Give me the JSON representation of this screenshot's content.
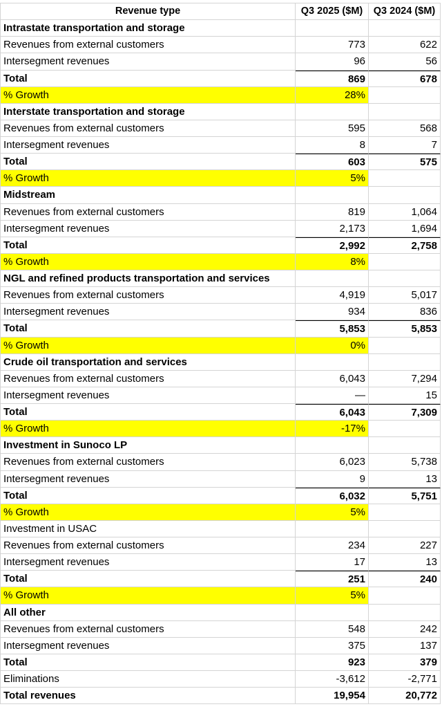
{
  "table": {
    "header": [
      "Revenue type",
      "Q3 2025 ($M)",
      "Q3 2024 ($M)"
    ],
    "rows": [
      [
        "Intrastate transportation and storage"
      ],
      [
        "Revenues from external customers",
        "773",
        "622"
      ],
      [
        "Intersegment revenues",
        "96",
        "56"
      ],
      [
        "Total",
        "869",
        "678"
      ],
      [
        "% Growth",
        "28%"
      ],
      [
        "Interstate transportation and storage"
      ],
      [
        "Revenues from external customers",
        "595",
        "568"
      ],
      [
        "Intersegment revenues",
        "8",
        "7"
      ],
      [
        "Total",
        "603",
        "575"
      ],
      [
        "% Growth",
        "5%"
      ],
      [
        "Midstream"
      ],
      [
        "Revenues from external customers",
        "819",
        "1,064"
      ],
      [
        "Intersegment revenues",
        "2,173",
        "1,694"
      ],
      [
        "Total",
        "2,992",
        "2,758"
      ],
      [
        "% Growth",
        "8%"
      ],
      [
        "NGL and refined products transportation and services"
      ],
      [
        "Revenues from external customers",
        "4,919",
        "5,017"
      ],
      [
        "Intersegment revenues",
        "934",
        "836"
      ],
      [
        "Total",
        "5,853",
        "5,853"
      ],
      [
        "% Growth",
        "0%"
      ],
      [
        "Crude oil transportation and services"
      ],
      [
        "Revenues from external customers",
        "6,043",
        "7,294"
      ],
      [
        "Intersegment revenues",
        "—",
        "15"
      ],
      [
        "Total",
        "6,043",
        "7,309"
      ],
      [
        "% Growth",
        "-17%"
      ],
      [
        "Investment in Sunoco LP"
      ],
      [
        "Revenues from external customers",
        "6,023",
        "5,738"
      ],
      [
        "Intersegment revenues",
        "9",
        "13"
      ],
      [
        "Total",
        "6,032",
        "5,751"
      ],
      [
        "% Growth",
        "5%"
      ],
      [
        "Investment in USAC"
      ],
      [
        "Revenues from external customers",
        "234",
        "227"
      ],
      [
        "Intersegment revenues",
        "17",
        "13"
      ],
      [
        "Total",
        "251",
        "240"
      ],
      [
        "% Growth",
        "5%"
      ],
      [
        "All other"
      ],
      [
        "Revenues from external customers",
        "548",
        "242"
      ],
      [
        "Intersegment revenues",
        "375",
        "137"
      ],
      [
        "Total",
        "923",
        "379"
      ],
      [
        "Eliminations",
        "-3,612",
        "-2,771"
      ],
      [
        "Total revenues",
        "19,954",
        "20,772"
      ]
    ]
  }
}
